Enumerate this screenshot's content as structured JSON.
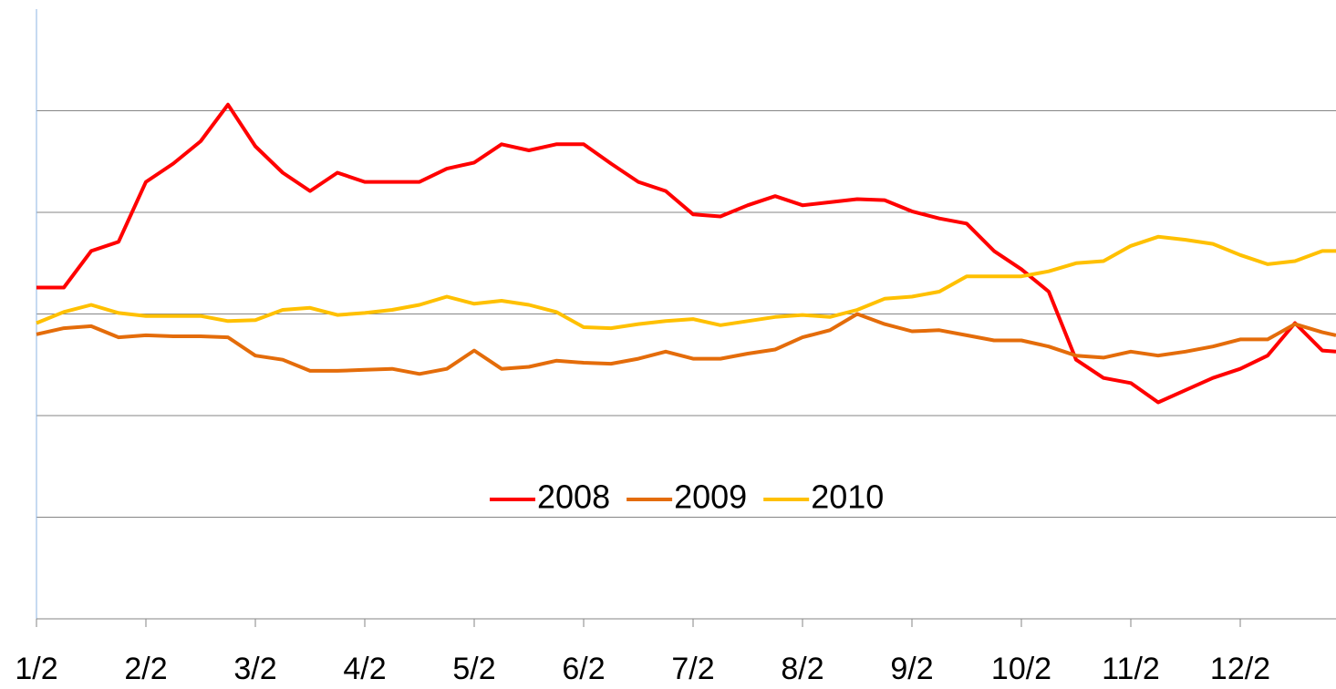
{
  "chart_data": {
    "type": "line",
    "x": [
      0,
      0.25,
      0.5,
      0.75,
      1,
      1.25,
      1.5,
      1.75,
      2,
      2.25,
      2.5,
      2.75,
      3,
      3.25,
      3.5,
      3.75,
      4,
      4.25,
      4.5,
      4.75,
      5,
      5.25,
      5.5,
      5.75,
      6,
      6.25,
      6.5,
      6.75,
      7,
      7.25,
      7.5,
      7.75,
      8,
      8.25,
      8.5,
      8.75,
      9,
      9.25,
      9.5,
      9.75,
      10,
      10.25,
      10.5,
      10.75,
      11,
      11.25,
      11.5,
      11.75,
      11.875
    ],
    "xlim": [
      0,
      11.875
    ],
    "xticks": [
      {
        "value": 0,
        "label": "1/2"
      },
      {
        "value": 1,
        "label": "2/2"
      },
      {
        "value": 2,
        "label": "3/2"
      },
      {
        "value": 3,
        "label": "4/2"
      },
      {
        "value": 4,
        "label": "5/2"
      },
      {
        "value": 5,
        "label": "6/2"
      },
      {
        "value": 6,
        "label": "7/2"
      },
      {
        "value": 7,
        "label": "8/2"
      },
      {
        "value": 8,
        "label": "9/2"
      },
      {
        "value": 9,
        "label": "10/2"
      },
      {
        "value": 10,
        "label": "11/2"
      },
      {
        "value": 11,
        "label": "12/2"
      }
    ],
    "ylim": [
      0,
      6
    ],
    "yticks": [
      1,
      2,
      3,
      4,
      5
    ],
    "grid": true,
    "legend": "center",
    "series": [
      {
        "name": "2008",
        "color": "#ff0000",
        "values": [
          3.26,
          3.26,
          3.62,
          3.71,
          4.3,
          4.48,
          4.7,
          5.06,
          4.65,
          4.39,
          4.21,
          4.39,
          4.3,
          4.3,
          4.3,
          4.43,
          4.49,
          4.67,
          4.61,
          4.67,
          4.67,
          4.48,
          4.3,
          4.21,
          3.98,
          3.96,
          4.07,
          4.16,
          4.07,
          4.1,
          4.13,
          4.12,
          4.01,
          3.94,
          3.89,
          3.62,
          3.44,
          3.22,
          2.55,
          2.37,
          2.32,
          2.13,
          2.25,
          2.37,
          2.46,
          2.59,
          2.91,
          2.64,
          2.63
        ]
      },
      {
        "name": "2009",
        "color": "#e46c0a",
        "values": [
          2.8,
          2.86,
          2.88,
          2.77,
          2.79,
          2.78,
          2.78,
          2.77,
          2.59,
          2.55,
          2.44,
          2.44,
          2.45,
          2.46,
          2.41,
          2.46,
          2.64,
          2.46,
          2.48,
          2.54,
          2.52,
          2.51,
          2.56,
          2.63,
          2.56,
          2.56,
          2.61,
          2.65,
          2.77,
          2.84,
          3.0,
          2.9,
          2.83,
          2.84,
          2.79,
          2.74,
          2.74,
          2.68,
          2.59,
          2.57,
          2.63,
          2.59,
          2.63,
          2.68,
          2.75,
          2.75,
          2.9,
          2.82,
          2.79
        ]
      },
      {
        "name": "2010",
        "color": "#ffc000",
        "values": [
          2.91,
          3.02,
          3.09,
          3.01,
          2.98,
          2.98,
          2.98,
          2.93,
          2.94,
          3.04,
          3.06,
          2.99,
          3.01,
          3.04,
          3.09,
          3.17,
          3.1,
          3.13,
          3.09,
          3.02,
          2.87,
          2.86,
          2.9,
          2.93,
          2.95,
          2.89,
          2.93,
          2.97,
          2.99,
          2.97,
          3.04,
          3.15,
          3.17,
          3.22,
          3.37,
          3.37,
          3.37,
          3.42,
          3.5,
          3.52,
          3.67,
          3.76,
          3.73,
          3.69,
          3.58,
          3.49,
          3.52,
          3.62,
          3.62
        ]
      }
    ]
  }
}
